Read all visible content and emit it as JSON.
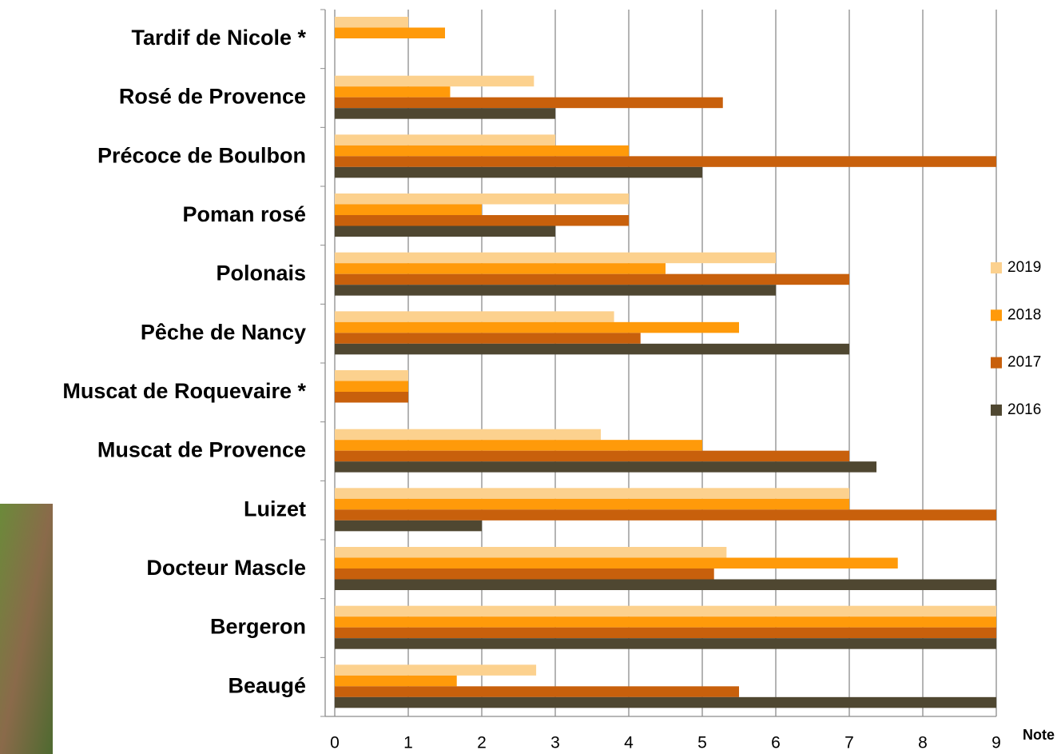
{
  "chart_data": {
    "type": "hbar",
    "categories": [
      "Tardif de Nicole *",
      "Rosé de Provence",
      "Précoce de Boulbon",
      "Poman rosé",
      "Polonais",
      "Pêche de Nancy",
      "Muscat de Roquevaire *",
      "Muscat de Provence",
      "Luizet",
      "Docteur Mascle",
      "Bergeron",
      "Beaugé"
    ],
    "series": [
      {
        "name": "2019",
        "color": "#fcd18e",
        "values": [
          1,
          2.71,
          3,
          4,
          6,
          3.8,
          1,
          3.62,
          7,
          5.33,
          9,
          2.74
        ]
      },
      {
        "name": "2018",
        "color": "#ff9a0a",
        "values": [
          1.5,
          1.57,
          4,
          2,
          4.5,
          5.5,
          1,
          5,
          7,
          7.66,
          9,
          1.66
        ]
      },
      {
        "name": "2017",
        "color": "#c8600c",
        "values": [
          null,
          5.28,
          9,
          4,
          7,
          4.16,
          1,
          7,
          9,
          5.16,
          9,
          5.5
        ]
      },
      {
        "name": "2016",
        "color": "#4f4731",
        "values": [
          null,
          3,
          5,
          3,
          6,
          7,
          null,
          7.37,
          2,
          9,
          9,
          9
        ]
      }
    ],
    "xlabel": "Note",
    "xlim": [
      0,
      9
    ],
    "xticks": [
      0,
      1,
      2,
      3,
      4,
      5,
      6,
      7,
      8,
      9
    ],
    "grid": true,
    "legend": "right"
  }
}
